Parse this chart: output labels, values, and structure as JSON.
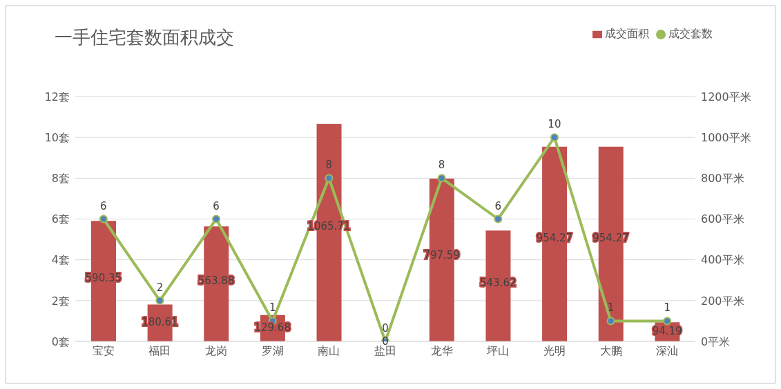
{
  "chart_data": {
    "type": "bar",
    "title": "一手住宅套数面积成交",
    "categories": [
      "宝安",
      "福田",
      "龙岗",
      "罗湖",
      "南山",
      "盐田",
      "龙华",
      "坪山",
      "光明",
      "大鹏",
      "深汕"
    ],
    "series": [
      {
        "name": "成交面积",
        "type": "bar",
        "axis": "y2",
        "color": "#c0504d",
        "values": [
          590.35,
          180.61,
          563.88,
          129.68,
          1065.71,
          0,
          797.59,
          543.62,
          954.27,
          954.27,
          94.19
        ]
      },
      {
        "name": "成交套数",
        "type": "line",
        "color": "#9bbb59",
        "values": [
          6,
          2,
          6,
          1,
          8,
          0,
          8,
          6,
          10,
          1,
          1
        ]
      }
    ],
    "ylim": [
      0,
      12
    ],
    "yticks": [
      {
        "value": 0,
        "label": "0套"
      },
      {
        "value": 2,
        "label": "2套"
      },
      {
        "value": 4,
        "label": "4套"
      },
      {
        "value": 6,
        "label": "6套"
      },
      {
        "value": 8,
        "label": "8套"
      },
      {
        "value": 10,
        "label": "10套"
      },
      {
        "value": 12,
        "label": "12套"
      }
    ],
    "y2lim": [
      0,
      1200
    ],
    "y2ticks": [
      {
        "value": 0,
        "label": "0平米"
      },
      {
        "value": 200,
        "label": "200平米"
      },
      {
        "value": 400,
        "label": "400平米"
      },
      {
        "value": 600,
        "label": "600平米"
      },
      {
        "value": 800,
        "label": "800平米"
      },
      {
        "value": 1000,
        "label": "1000平米"
      },
      {
        "value": 1200,
        "label": "1200平米"
      }
    ],
    "grid": "y",
    "legend": "top right",
    "marker": "circle",
    "line_style": "solid",
    "data_labels": true
  }
}
